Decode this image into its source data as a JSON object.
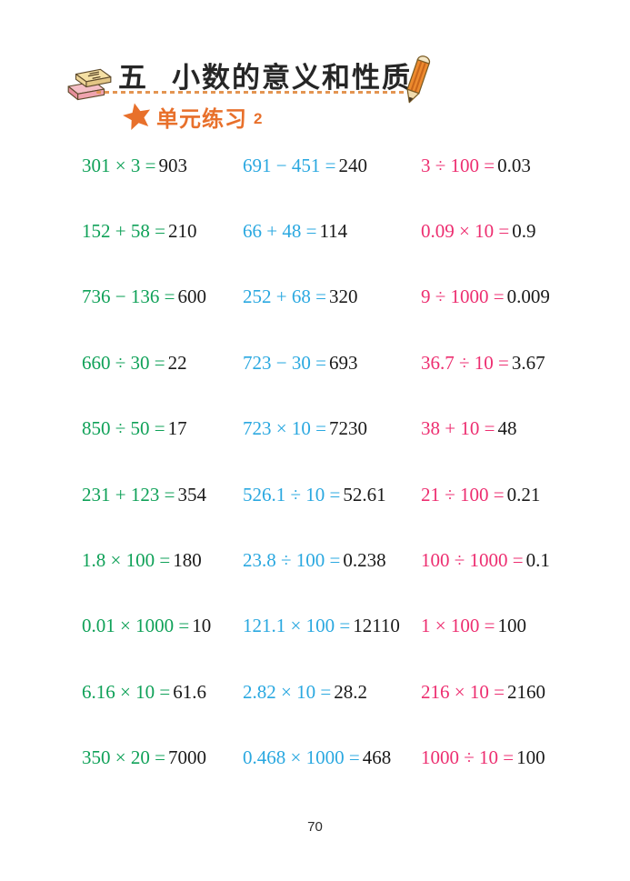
{
  "header": {
    "section_number": "五",
    "title": "小数的意义和性质",
    "subtitle": "单元练习",
    "subtitle_number": "2",
    "icons": {
      "left": "books-icon",
      "right": "pencil-icon",
      "subtitle_marker": "star-icon"
    }
  },
  "colors": {
    "green": "#0fa158",
    "blue": "#2aa8e0",
    "pink": "#ed2e70",
    "orange": "#e8702b",
    "orange_light": "#e39552",
    "ink": "#1a1a1a"
  },
  "problems": [
    [
      {
        "q": "301 × 3 =",
        "a": "903"
      },
      {
        "q": "691 − 451 =",
        "a": "240"
      },
      {
        "q": "3 ÷ 100 =",
        "a": "0.03"
      }
    ],
    [
      {
        "q": "152 + 58 =",
        "a": "210"
      },
      {
        "q": "66 + 48 =",
        "a": "114"
      },
      {
        "q": "0.09 × 10 =",
        "a": "0.9"
      }
    ],
    [
      {
        "q": "736 − 136 =",
        "a": "600"
      },
      {
        "q": "252 + 68 =",
        "a": "320"
      },
      {
        "q": "9 ÷ 1000 =",
        "a": "0.009"
      }
    ],
    [
      {
        "q": "660 ÷ 30 =",
        "a": "22"
      },
      {
        "q": "723 − 30 =",
        "a": "693"
      },
      {
        "q": "36.7 ÷ 10 =",
        "a": "3.67"
      }
    ],
    [
      {
        "q": "850 ÷ 50 =",
        "a": "17"
      },
      {
        "q": "723 × 10 =",
        "a": "7230"
      },
      {
        "q": "38 + 10 =",
        "a": "48"
      }
    ],
    [
      {
        "q": "231 + 123 =",
        "a": "354"
      },
      {
        "q": "526.1 ÷ 10 =",
        "a": "52.61"
      },
      {
        "q": "21 ÷ 100 =",
        "a": "0.21"
      }
    ],
    [
      {
        "q": "1.8 × 100 =",
        "a": "180"
      },
      {
        "q": "23.8 ÷ 100 =",
        "a": "0.238"
      },
      {
        "q": "100 ÷ 1000 =",
        "a": "0.1"
      }
    ],
    [
      {
        "q": "0.01 × 1000 =",
        "a": "10"
      },
      {
        "q": "121.1 × 100 =",
        "a": "12110"
      },
      {
        "q": "1 × 100 =",
        "a": "100"
      }
    ],
    [
      {
        "q": "6.16 × 10 =",
        "a": "61.6"
      },
      {
        "q": "2.82 × 10 =",
        "a": "28.2"
      },
      {
        "q": "216 × 10 =",
        "a": "2160"
      }
    ],
    [
      {
        "q": "350 × 20 =",
        "a": "7000"
      },
      {
        "q": "0.468 × 1000 =",
        "a": "468"
      },
      {
        "q": "1000 ÷ 10 =",
        "a": "100"
      }
    ]
  ],
  "footer": {
    "page_number": "70"
  }
}
